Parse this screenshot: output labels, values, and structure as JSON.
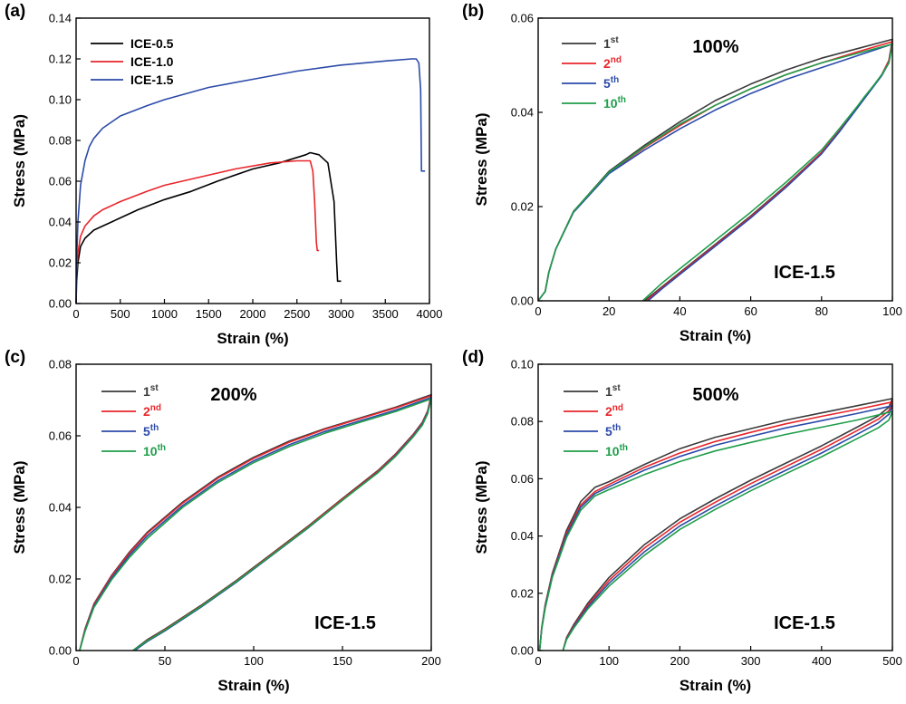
{
  "colors": {
    "ICE-0.5": "#000000",
    "ICE-1.0": "#e8262b",
    "ICE-1.5": "#2b4aa8",
    "1st": "#3a3a3a",
    "2nd": "#e8262b",
    "5th": "#2b4aa8",
    "10th": "#1f9e4a"
  },
  "chart_data": [
    {
      "panel": "(a)",
      "type": "line",
      "xlabel": "Strain (%)",
      "ylabel": "Stress (MPa)",
      "xlim": [
        0,
        4000
      ],
      "ylim": [
        0,
        0.14
      ],
      "xticks": [
        0,
        500,
        1000,
        1500,
        2000,
        2500,
        3000,
        3500,
        4000
      ],
      "yticks": [
        0.0,
        0.02,
        0.04,
        0.06,
        0.08,
        0.1,
        0.12,
        0.14
      ],
      "tick_decimals": 2,
      "legend_position": "top-left",
      "series": [
        {
          "name": "ICE-0.5",
          "color_key": "ICE-0.5",
          "x": [
            0,
            5,
            20,
            50,
            100,
            200,
            300,
            500,
            700,
            1000,
            1300,
            1600,
            2000,
            2300,
            2600,
            2650,
            2750,
            2850,
            2920,
            2950,
            2960,
            3000
          ],
          "y": [
            0,
            0.01,
            0.02,
            0.028,
            0.032,
            0.036,
            0.038,
            0.042,
            0.046,
            0.051,
            0.055,
            0.06,
            0.066,
            0.069,
            0.073,
            0.074,
            0.073,
            0.069,
            0.05,
            0.02,
            0.011,
            0.011
          ]
        },
        {
          "name": "ICE-1.0",
          "color_key": "ICE-1.0",
          "x": [
            0,
            5,
            20,
            50,
            100,
            200,
            300,
            500,
            800,
            1000,
            1400,
            1800,
            2200,
            2500,
            2650,
            2680,
            2700,
            2720,
            2730,
            2750
          ],
          "y": [
            0,
            0.015,
            0.025,
            0.033,
            0.038,
            0.043,
            0.046,
            0.05,
            0.055,
            0.058,
            0.062,
            0.066,
            0.069,
            0.07,
            0.07,
            0.065,
            0.05,
            0.03,
            0.026,
            0.026
          ]
        },
        {
          "name": "ICE-1.5",
          "color_key": "ICE-1.5",
          "x": [
            0,
            5,
            20,
            50,
            100,
            150,
            200,
            300,
            500,
            800,
            1000,
            1500,
            2000,
            2500,
            3000,
            3500,
            3800,
            3850,
            3880,
            3900,
            3910,
            3950
          ],
          "y": [
            0,
            0.02,
            0.04,
            0.058,
            0.07,
            0.077,
            0.081,
            0.086,
            0.092,
            0.097,
            0.1,
            0.106,
            0.11,
            0.114,
            0.117,
            0.119,
            0.12,
            0.12,
            0.118,
            0.105,
            0.065,
            0.065
          ]
        }
      ]
    },
    {
      "panel": "(b)",
      "type": "line",
      "condition": "100%",
      "sample": "ICE-1.5",
      "xlabel": "Strain (%)",
      "ylabel": "Stress (MPa)",
      "xlim": [
        0,
        100
      ],
      "ylim": [
        0,
        0.06
      ],
      "xticks": [
        0,
        20,
        40,
        60,
        80,
        100
      ],
      "yticks": [
        0.0,
        0.02,
        0.04,
        0.06
      ],
      "tick_decimals": 2,
      "legend_position": "top-left",
      "series": [
        {
          "name": "1st",
          "color_key": "1st",
          "x": [
            0,
            1,
            2,
            3,
            5,
            10,
            20,
            30,
            40,
            50,
            60,
            70,
            80,
            90,
            100,
            99,
            97,
            95,
            92,
            90,
            85,
            80,
            70,
            60,
            50,
            40,
            35,
            30
          ],
          "y": [
            0,
            0.001,
            0.002,
            0.006,
            0.011,
            0.019,
            0.0275,
            0.033,
            0.038,
            0.0425,
            0.046,
            0.049,
            0.0515,
            0.0535,
            0.0555,
            0.051,
            0.048,
            0.046,
            0.043,
            0.041,
            0.036,
            0.0315,
            0.0245,
            0.018,
            0.012,
            0.006,
            0.003,
            0
          ]
        },
        {
          "name": "2nd",
          "color_key": "2nd",
          "x": [
            0,
            1,
            2,
            3,
            5,
            10,
            20,
            30,
            40,
            50,
            60,
            70,
            80,
            90,
            100,
            99,
            97,
            95,
            92,
            90,
            85,
            80,
            70,
            60,
            50,
            40,
            35,
            30.5
          ],
          "y": [
            0,
            0.001,
            0.002,
            0.006,
            0.011,
            0.019,
            0.0272,
            0.0325,
            0.0372,
            0.0415,
            0.045,
            0.048,
            0.0505,
            0.0528,
            0.055,
            0.051,
            0.048,
            0.046,
            0.043,
            0.041,
            0.036,
            0.0315,
            0.0243,
            0.0178,
            0.0118,
            0.0058,
            0.0028,
            0
          ]
        },
        {
          "name": "5th",
          "color_key": "5th",
          "x": [
            0,
            1,
            2,
            3,
            5,
            10,
            20,
            30,
            40,
            50,
            60,
            70,
            80,
            90,
            100,
            99,
            97,
            95,
            92,
            90,
            85,
            80,
            70,
            60,
            50,
            40,
            35,
            31
          ],
          "y": [
            0,
            0.001,
            0.002,
            0.006,
            0.011,
            0.0188,
            0.027,
            0.032,
            0.0365,
            0.0405,
            0.044,
            0.047,
            0.0495,
            0.052,
            0.0545,
            0.0505,
            0.0478,
            0.0458,
            0.0428,
            0.0408,
            0.0358,
            0.0312,
            0.0241,
            0.0176,
            0.0116,
            0.0056,
            0.0026,
            0
          ]
        },
        {
          "name": "10th",
          "color_key": "10th",
          "x": [
            0,
            1,
            2,
            3,
            5,
            10,
            20,
            30,
            40,
            50,
            60,
            70,
            80,
            90,
            100,
            99,
            97,
            95,
            92,
            90,
            85,
            80,
            70,
            60,
            50,
            40,
            35,
            29.5
          ],
          "y": [
            0,
            0.001,
            0.002,
            0.006,
            0.011,
            0.019,
            0.0273,
            0.0327,
            0.0375,
            0.0415,
            0.045,
            0.048,
            0.0505,
            0.0525,
            0.0545,
            0.0505,
            0.048,
            0.046,
            0.0432,
            0.0412,
            0.0365,
            0.032,
            0.0252,
            0.0188,
            0.0128,
            0.0068,
            0.0038,
            0
          ]
        }
      ]
    },
    {
      "panel": "(c)",
      "type": "line",
      "condition": "200%",
      "sample": "ICE-1.5",
      "xlabel": "Strain (%)",
      "ylabel": "Stress (MPa)",
      "xlim": [
        0,
        200
      ],
      "ylim": [
        0,
        0.08
      ],
      "xticks": [
        0,
        50,
        100,
        150,
        200
      ],
      "yticks": [
        0.0,
        0.02,
        0.04,
        0.06,
        0.08
      ],
      "tick_decimals": 2,
      "legend_position": "top-left",
      "series": [
        {
          "name": "1st",
          "color_key": "1st",
          "x": [
            2,
            5,
            10,
            20,
            30,
            40,
            60,
            80,
            100,
            120,
            140,
            160,
            180,
            200,
            198,
            195,
            190,
            180,
            170,
            150,
            130,
            110,
            90,
            70,
            50,
            40,
            32
          ],
          "y": [
            0,
            0.006,
            0.013,
            0.021,
            0.0275,
            0.033,
            0.0415,
            0.0485,
            0.054,
            0.0585,
            0.062,
            0.065,
            0.068,
            0.0715,
            0.067,
            0.0638,
            0.0605,
            0.055,
            0.0503,
            0.0425,
            0.0345,
            0.027,
            0.0195,
            0.0125,
            0.006,
            0.003,
            0
          ]
        },
        {
          "name": "2nd",
          "color_key": "2nd",
          "x": [
            2,
            5,
            10,
            20,
            30,
            40,
            60,
            80,
            100,
            120,
            140,
            160,
            180,
            200,
            198,
            195,
            190,
            180,
            170,
            150,
            130,
            110,
            90,
            70,
            50,
            40,
            32.5
          ],
          "y": [
            0,
            0.0058,
            0.0128,
            0.0208,
            0.0272,
            0.0327,
            0.0412,
            0.0482,
            0.0537,
            0.0582,
            0.0618,
            0.0648,
            0.0678,
            0.0712,
            0.0668,
            0.0636,
            0.0603,
            0.0548,
            0.0501,
            0.0423,
            0.0343,
            0.0268,
            0.0193,
            0.0123,
            0.0058,
            0.0028,
            0
          ]
        },
        {
          "name": "5th",
          "color_key": "5th",
          "x": [
            2,
            5,
            10,
            20,
            30,
            40,
            60,
            80,
            100,
            120,
            140,
            160,
            180,
            200,
            198,
            195,
            190,
            180,
            170,
            150,
            130,
            110,
            90,
            70,
            50,
            40,
            33
          ],
          "y": [
            0,
            0.0055,
            0.0124,
            0.0203,
            0.0266,
            0.032,
            0.0405,
            0.0475,
            0.053,
            0.0575,
            0.0612,
            0.0642,
            0.0672,
            0.0707,
            0.0665,
            0.0633,
            0.06,
            0.0545,
            0.0498,
            0.042,
            0.034,
            0.0265,
            0.019,
            0.012,
            0.0055,
            0.0025,
            0
          ]
        },
        {
          "name": "10th",
          "color_key": "10th",
          "x": [
            2,
            5,
            10,
            20,
            30,
            40,
            60,
            80,
            100,
            120,
            140,
            160,
            180,
            200,
            198,
            195,
            190,
            180,
            170,
            150,
            130,
            110,
            90,
            70,
            50,
            40,
            32
          ],
          "y": [
            0,
            0.0053,
            0.012,
            0.0198,
            0.026,
            0.0313,
            0.04,
            0.047,
            0.0525,
            0.057,
            0.0607,
            0.0638,
            0.0668,
            0.0703,
            0.0662,
            0.063,
            0.0598,
            0.0543,
            0.0497,
            0.042,
            0.0341,
            0.0266,
            0.0192,
            0.0122,
            0.0057,
            0.0027,
            0
          ]
        }
      ]
    },
    {
      "panel": "(d)",
      "type": "line",
      "condition": "500%",
      "sample": "ICE-1.5",
      "xlabel": "Strain (%)",
      "ylabel": "Stress (MPa)",
      "xlim": [
        0,
        500
      ],
      "ylim": [
        0,
        0.1
      ],
      "xticks": [
        0,
        100,
        200,
        300,
        400,
        500
      ],
      "yticks": [
        0.0,
        0.02,
        0.04,
        0.06,
        0.08,
        0.1
      ],
      "tick_decimals": 2,
      "legend_position": "top-left",
      "series": [
        {
          "name": "1st",
          "color_key": "1st",
          "x": [
            2,
            5,
            10,
            20,
            40,
            60,
            80,
            100,
            150,
            200,
            250,
            300,
            350,
            400,
            450,
            500,
            495,
            480,
            450,
            400,
            350,
            300,
            250,
            200,
            150,
            100,
            70,
            50,
            40,
            35
          ],
          "y": [
            0,
            0.008,
            0.016,
            0.027,
            0.042,
            0.052,
            0.057,
            0.059,
            0.065,
            0.0705,
            0.0745,
            0.0775,
            0.0805,
            0.083,
            0.0855,
            0.088,
            0.085,
            0.082,
            0.078,
            0.0715,
            0.0655,
            0.0595,
            0.053,
            0.046,
            0.037,
            0.0255,
            0.0165,
            0.009,
            0.0045,
            0
          ]
        },
        {
          "name": "2nd",
          "color_key": "2nd",
          "x": [
            2,
            5,
            10,
            20,
            40,
            60,
            80,
            100,
            150,
            200,
            250,
            300,
            350,
            400,
            450,
            500,
            495,
            480,
            450,
            400,
            350,
            300,
            250,
            200,
            150,
            100,
            70,
            50,
            40,
            35
          ],
          "y": [
            0,
            0.0078,
            0.0155,
            0.0265,
            0.041,
            0.0508,
            0.0555,
            0.058,
            0.064,
            0.069,
            0.073,
            0.0762,
            0.0792,
            0.0818,
            0.0842,
            0.0868,
            0.0838,
            0.0808,
            0.0768,
            0.0703,
            0.0643,
            0.0583,
            0.0518,
            0.0448,
            0.0358,
            0.0245,
            0.0158,
            0.0085,
            0.0042,
            0
          ]
        },
        {
          "name": "5th",
          "color_key": "5th",
          "x": [
            2,
            5,
            10,
            20,
            40,
            60,
            80,
            100,
            150,
            200,
            250,
            300,
            350,
            400,
            450,
            500,
            495,
            480,
            450,
            400,
            350,
            300,
            250,
            200,
            150,
            100,
            70,
            50,
            40,
            35
          ],
          "y": [
            0,
            0.0076,
            0.0152,
            0.026,
            0.0403,
            0.05,
            0.0548,
            0.0572,
            0.063,
            0.0678,
            0.0717,
            0.0748,
            0.0778,
            0.0803,
            0.0828,
            0.0855,
            0.0825,
            0.0795,
            0.0755,
            0.069,
            0.063,
            0.057,
            0.0505,
            0.0435,
            0.0345,
            0.0235,
            0.0152,
            0.0082,
            0.004,
            0
          ]
        },
        {
          "name": "10th",
          "color_key": "10th",
          "x": [
            2,
            5,
            10,
            20,
            40,
            60,
            80,
            100,
            150,
            200,
            250,
            300,
            350,
            400,
            450,
            500,
            495,
            480,
            450,
            400,
            350,
            300,
            250,
            200,
            150,
            100,
            70,
            50,
            40,
            35
          ],
          "y": [
            0,
            0.0074,
            0.0148,
            0.0255,
            0.0395,
            0.049,
            0.054,
            0.0562,
            0.0615,
            0.066,
            0.0697,
            0.0727,
            0.0755,
            0.078,
            0.0805,
            0.0835,
            0.0805,
            0.0778,
            0.074,
            0.0677,
            0.0618,
            0.0558,
            0.0493,
            0.0423,
            0.0333,
            0.0225,
            0.0145,
            0.0078,
            0.0038,
            0
          ]
        }
      ]
    }
  ]
}
